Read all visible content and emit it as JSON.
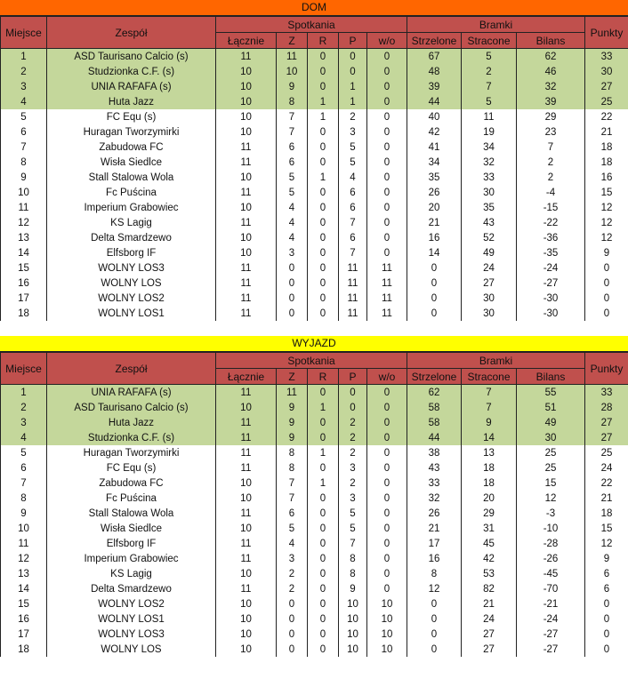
{
  "colors": {
    "dom_title": "#ff6600",
    "wyjazd_title": "#ffff00",
    "header": "#c0504d",
    "top_rows": "#c4d79b"
  },
  "headers": {
    "miejsce": "Miejsce",
    "zespol": "Zespół",
    "spotkania": "Spotkania",
    "bramki": "Bramki",
    "punkty": "Punkty",
    "lacznie": "Łącznie",
    "z": "Z",
    "r": "R",
    "p": "P",
    "wo": "w/o",
    "strzelone": "Strzelone",
    "stracone": "Stracone",
    "bilans": "Bilans"
  },
  "tables": [
    {
      "title": "DOM",
      "rows": [
        [
          "1",
          "ASD Taurisano Calcio (s)",
          "11",
          "11",
          "0",
          "0",
          "0",
          "67",
          "5",
          "62",
          "33"
        ],
        [
          "2",
          "Studzionka C.F. (s)",
          "10",
          "10",
          "0",
          "0",
          "0",
          "48",
          "2",
          "46",
          "30"
        ],
        [
          "3",
          "UNIA RAFAFA (s)",
          "10",
          "9",
          "0",
          "1",
          "0",
          "39",
          "7",
          "32",
          "27"
        ],
        [
          "4",
          "Huta Jazz",
          "10",
          "8",
          "1",
          "1",
          "0",
          "44",
          "5",
          "39",
          "25"
        ],
        [
          "5",
          "FC Equ (s)",
          "10",
          "7",
          "1",
          "2",
          "0",
          "40",
          "11",
          "29",
          "22"
        ],
        [
          "6",
          "Huragan Tworzymirki",
          "10",
          "7",
          "0",
          "3",
          "0",
          "42",
          "19",
          "23",
          "21"
        ],
        [
          "7",
          "Zabudowa FC",
          "11",
          "6",
          "0",
          "5",
          "0",
          "41",
          "34",
          "7",
          "18"
        ],
        [
          "8",
          "Wisła Siedlce",
          "11",
          "6",
          "0",
          "5",
          "0",
          "34",
          "32",
          "2",
          "18"
        ],
        [
          "9",
          "Stall Stalowa Wola",
          "10",
          "5",
          "1",
          "4",
          "0",
          "35",
          "33",
          "2",
          "16"
        ],
        [
          "10",
          "Fc Puścina",
          "11",
          "5",
          "0",
          "6",
          "0",
          "26",
          "30",
          "-4",
          "15"
        ],
        [
          "11",
          "Imperium Grabowiec",
          "10",
          "4",
          "0",
          "6",
          "0",
          "20",
          "35",
          "-15",
          "12"
        ],
        [
          "12",
          "KS Lagig",
          "11",
          "4",
          "0",
          "7",
          "0",
          "21",
          "43",
          "-22",
          "12"
        ],
        [
          "13",
          "Delta Smardzewo",
          "10",
          "4",
          "0",
          "6",
          "0",
          "16",
          "52",
          "-36",
          "12"
        ],
        [
          "14",
          "Elfsborg IF",
          "10",
          "3",
          "0",
          "7",
          "0",
          "14",
          "49",
          "-35",
          "9"
        ],
        [
          "15",
          "WOLNY LOS3",
          "11",
          "0",
          "0",
          "11",
          "11",
          "0",
          "24",
          "-24",
          "0"
        ],
        [
          "16",
          "WOLNY LOS",
          "11",
          "0",
          "0",
          "11",
          "11",
          "0",
          "27",
          "-27",
          "0"
        ],
        [
          "17",
          "WOLNY LOS2",
          "11",
          "0",
          "0",
          "11",
          "11",
          "0",
          "30",
          "-30",
          "0"
        ],
        [
          "18",
          "WOLNY LOS1",
          "11",
          "0",
          "0",
          "11",
          "11",
          "0",
          "30",
          "-30",
          "0"
        ]
      ]
    },
    {
      "title": "WYJAZD",
      "rows": [
        [
          "1",
          "UNIA RAFAFA (s)",
          "11",
          "11",
          "0",
          "0",
          "0",
          "62",
          "7",
          "55",
          "33"
        ],
        [
          "2",
          "ASD Taurisano Calcio (s)",
          "10",
          "9",
          "1",
          "0",
          "0",
          "58",
          "7",
          "51",
          "28"
        ],
        [
          "3",
          "Huta Jazz",
          "11",
          "9",
          "0",
          "2",
          "0",
          "58",
          "9",
          "49",
          "27"
        ],
        [
          "4",
          "Studzionka C.F. (s)",
          "11",
          "9",
          "0",
          "2",
          "0",
          "44",
          "14",
          "30",
          "27"
        ],
        [
          "5",
          "Huragan Tworzymirki",
          "11",
          "8",
          "1",
          "2",
          "0",
          "38",
          "13",
          "25",
          "25"
        ],
        [
          "6",
          "FC Equ (s)",
          "11",
          "8",
          "0",
          "3",
          "0",
          "43",
          "18",
          "25",
          "24"
        ],
        [
          "7",
          "Zabudowa FC",
          "10",
          "7",
          "1",
          "2",
          "0",
          "33",
          "18",
          "15",
          "22"
        ],
        [
          "8",
          "Fc Puścina",
          "10",
          "7",
          "0",
          "3",
          "0",
          "32",
          "20",
          "12",
          "21"
        ],
        [
          "9",
          "Stall Stalowa Wola",
          "11",
          "6",
          "0",
          "5",
          "0",
          "26",
          "29",
          "-3",
          "18"
        ],
        [
          "10",
          "Wisła Siedlce",
          "10",
          "5",
          "0",
          "5",
          "0",
          "21",
          "31",
          "-10",
          "15"
        ],
        [
          "11",
          "Elfsborg IF",
          "11",
          "4",
          "0",
          "7",
          "0",
          "17",
          "45",
          "-28",
          "12"
        ],
        [
          "12",
          "Imperium Grabowiec",
          "11",
          "3",
          "0",
          "8",
          "0",
          "16",
          "42",
          "-26",
          "9"
        ],
        [
          "13",
          "KS Lagig",
          "10",
          "2",
          "0",
          "8",
          "0",
          "8",
          "53",
          "-45",
          "6"
        ],
        [
          "14",
          "Delta Smardzewo",
          "11",
          "2",
          "0",
          "9",
          "0",
          "12",
          "82",
          "-70",
          "6"
        ],
        [
          "15",
          "WOLNY LOS2",
          "10",
          "0",
          "0",
          "10",
          "10",
          "0",
          "21",
          "-21",
          "0"
        ],
        [
          "16",
          "WOLNY LOS1",
          "10",
          "0",
          "0",
          "10",
          "10",
          "0",
          "24",
          "-24",
          "0"
        ],
        [
          "17",
          "WOLNY LOS3",
          "10",
          "0",
          "0",
          "10",
          "10",
          "0",
          "27",
          "-27",
          "0"
        ],
        [
          "18",
          "WOLNY LOS",
          "10",
          "0",
          "0",
          "10",
          "10",
          "0",
          "27",
          "-27",
          "0"
        ]
      ]
    }
  ]
}
